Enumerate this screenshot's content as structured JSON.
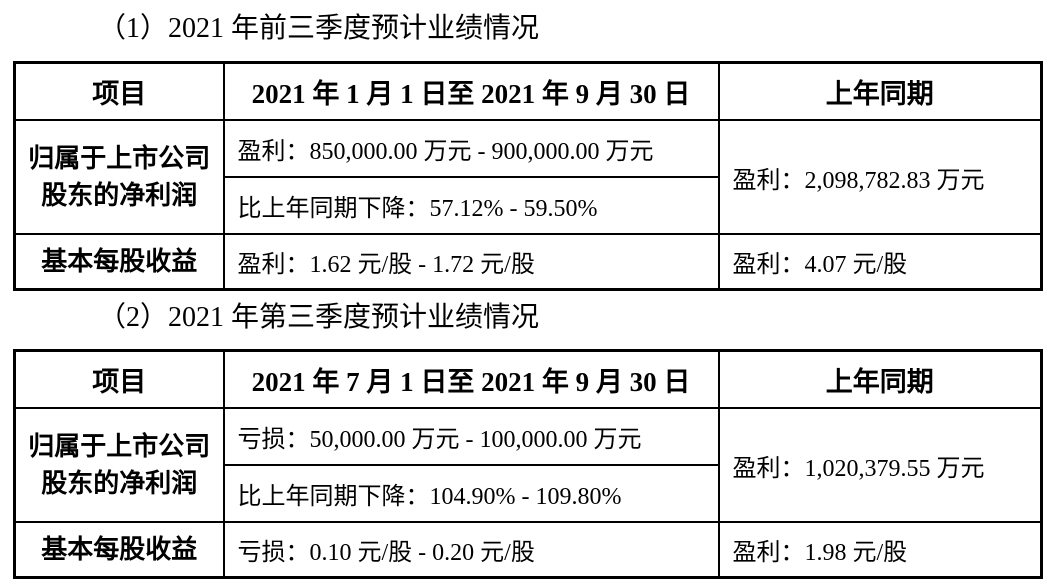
{
  "page": {
    "background_color": "#ffffff",
    "text_color": "#000000",
    "border_color": "#000000"
  },
  "sections": [
    {
      "heading": "（1）2021 年前三季度预计业绩情况",
      "table": {
        "headers": [
          "项目",
          "2021 年 1 月 1 日至 2021 年 9 月 30 日",
          "上年同期"
        ],
        "net_profit_row": {
          "label_lines": [
            "归属于上市公司",
            "股东的净利润"
          ],
          "profit_range": "盈利：850,000.00 万元 - 900,000.00 万元",
          "yoy_change": "比上年同期下降：57.12% - 59.50%",
          "prior_year": "盈利：2,098,782.83 万元"
        },
        "eps_row": {
          "label": "基本每股收益",
          "value": "盈利：1.62 元/股 - 1.72 元/股",
          "prior_year": "盈利：4.07 元/股"
        }
      }
    },
    {
      "heading": "（2）2021 年第三季度预计业绩情况",
      "table": {
        "headers": [
          "项目",
          "2021 年 7 月 1 日至 2021 年 9 月 30 日",
          "上年同期"
        ],
        "net_profit_row": {
          "label_lines": [
            "归属于上市公司",
            "股东的净利润"
          ],
          "profit_range": "亏损：50,000.00 万元 - 100,000.00 万元",
          "yoy_change": "比上年同期下降：104.90% - 109.80%",
          "prior_year": "盈利：1,020,379.55 万元"
        },
        "eps_row": {
          "label": "基本每股收益",
          "value": "亏损：0.10 元/股 - 0.20 元/股",
          "prior_year": "盈利：1.98 元/股"
        }
      }
    }
  ]
}
